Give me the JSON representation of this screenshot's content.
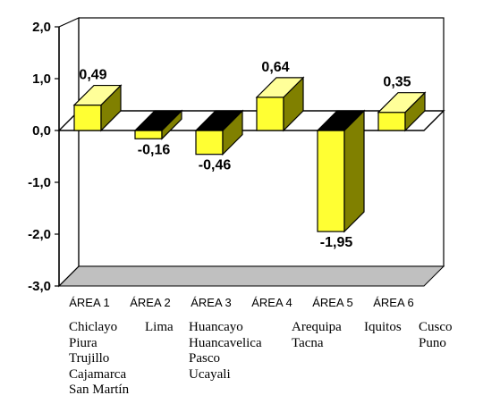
{
  "chart_data": {
    "type": "bar",
    "style": "3d",
    "categories": [
      "ÁREA 1",
      "ÁREA 2",
      "ÁREA 3",
      "ÁREA 4",
      "ÁREA 5",
      "ÁREA 6"
    ],
    "values": [
      0.49,
      -0.16,
      -0.46,
      0.64,
      -1.95,
      0.35
    ],
    "data_labels": [
      "0,49",
      "-0,16",
      "-0,46",
      "0,64",
      "-1,95",
      "0,35"
    ],
    "ylim": [
      -3.0,
      2.0
    ],
    "yticks": [
      2.0,
      1.0,
      0.0,
      -1.0,
      -2.0,
      -3.0
    ],
    "ytick_labels": [
      "2,0",
      "1,0",
      "0,0",
      "-1,0",
      "-2,0",
      "-3,0"
    ],
    "grid": false,
    "colors": {
      "bar_front": "#ffff33",
      "bar_side": "#808000",
      "bar_top_positive": "#ffff99",
      "bar_top_negative": "#000000",
      "floor": "#c0c0c0"
    }
  },
  "cities": [
    [
      "Chiclayo",
      "Piura",
      "Trujillo",
      "Cajamarca",
      "San Martín"
    ],
    [
      "Lima"
    ],
    [
      "Huancayo",
      "Huancavelica",
      "Pasco",
      "Ucayali"
    ],
    [
      "Arequipa",
      "Tacna"
    ],
    [
      "Iquitos"
    ],
    [
      "Cusco",
      "Puno"
    ]
  ]
}
